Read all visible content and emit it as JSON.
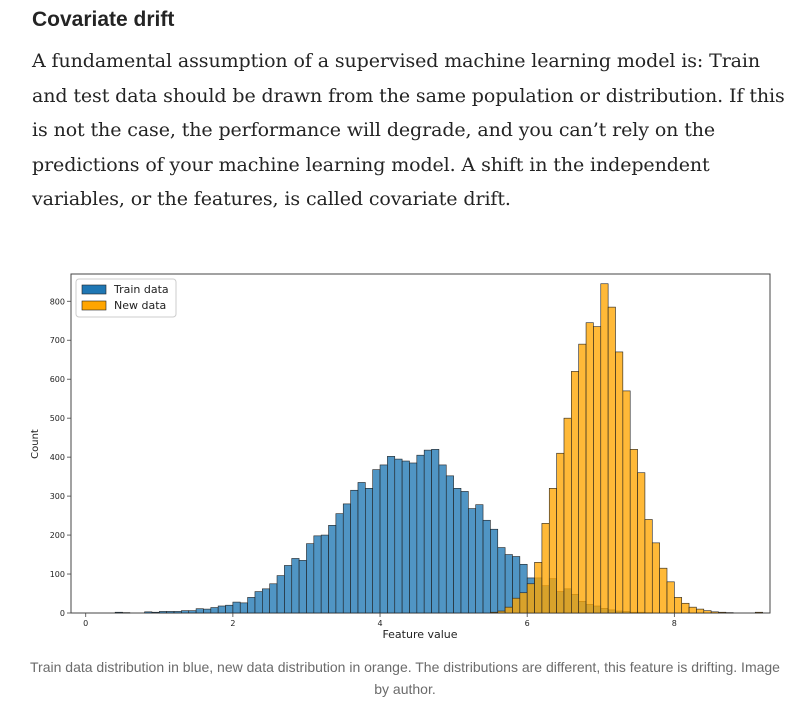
{
  "article": {
    "heading": "Covariate drift",
    "paragraph": "A fundamental assumption of a supervised machine learning model is: Train and test data should be drawn from the same population or distribution. If this is not the case, the performance will degrade, and you can’t rely on the predictions of your machine learning model. A shift in the independent variables, or the features, is called covariate drift.",
    "caption": "Train data distribution in blue, new data distribution in orange. The distributions are different, this feature is drifting. Image by author."
  },
  "chart_data": {
    "type": "histogram",
    "title": "",
    "xlabel": "Feature value",
    "ylabel": "Count",
    "xlim": [
      -0.2,
      9.3
    ],
    "ylim": [
      0,
      870
    ],
    "xticks": [
      0,
      2,
      4,
      6,
      8
    ],
    "yticks": [
      0,
      100,
      200,
      300,
      400,
      500,
      600,
      700,
      800
    ],
    "legend": {
      "position": "top-left",
      "entries": [
        "Train data",
        "New data"
      ]
    },
    "colors": {
      "train": "#1f77b4",
      "new": "#ffa500",
      "edge": "#222222"
    },
    "series": [
      {
        "name": "Train data",
        "bin_start": 0.4,
        "bin_width": 0.1,
        "counts": [
          2,
          1,
          0,
          0,
          3,
          2,
          4,
          4,
          4,
          6,
          6,
          11,
          10,
          14,
          18,
          20,
          28,
          26,
          40,
          55,
          62,
          75,
          96,
          122,
          140,
          135,
          178,
          198,
          200,
          225,
          255,
          280,
          315,
          335,
          320,
          368,
          380,
          402,
          395,
          390,
          385,
          405,
          418,
          420,
          380,
          352,
          320,
          312,
          268,
          278,
          238,
          215,
          168,
          150,
          145,
          125,
          90,
          90,
          70,
          88,
          55,
          62,
          48,
          30,
          22,
          18,
          12,
          8,
          5,
          4,
          2,
          2,
          1
        ]
      },
      {
        "name": "New data",
        "bin_start": 5.5,
        "bin_width": 0.1,
        "counts": [
          2,
          5,
          15,
          38,
          52,
          75,
          130,
          230,
          320,
          410,
          500,
          620,
          690,
          745,
          735,
          845,
          785,
          670,
          570,
          420,
          360,
          240,
          180,
          115,
          80,
          40,
          25,
          15,
          10,
          6,
          3,
          2,
          1,
          0,
          0,
          0,
          2
        ]
      }
    ]
  }
}
